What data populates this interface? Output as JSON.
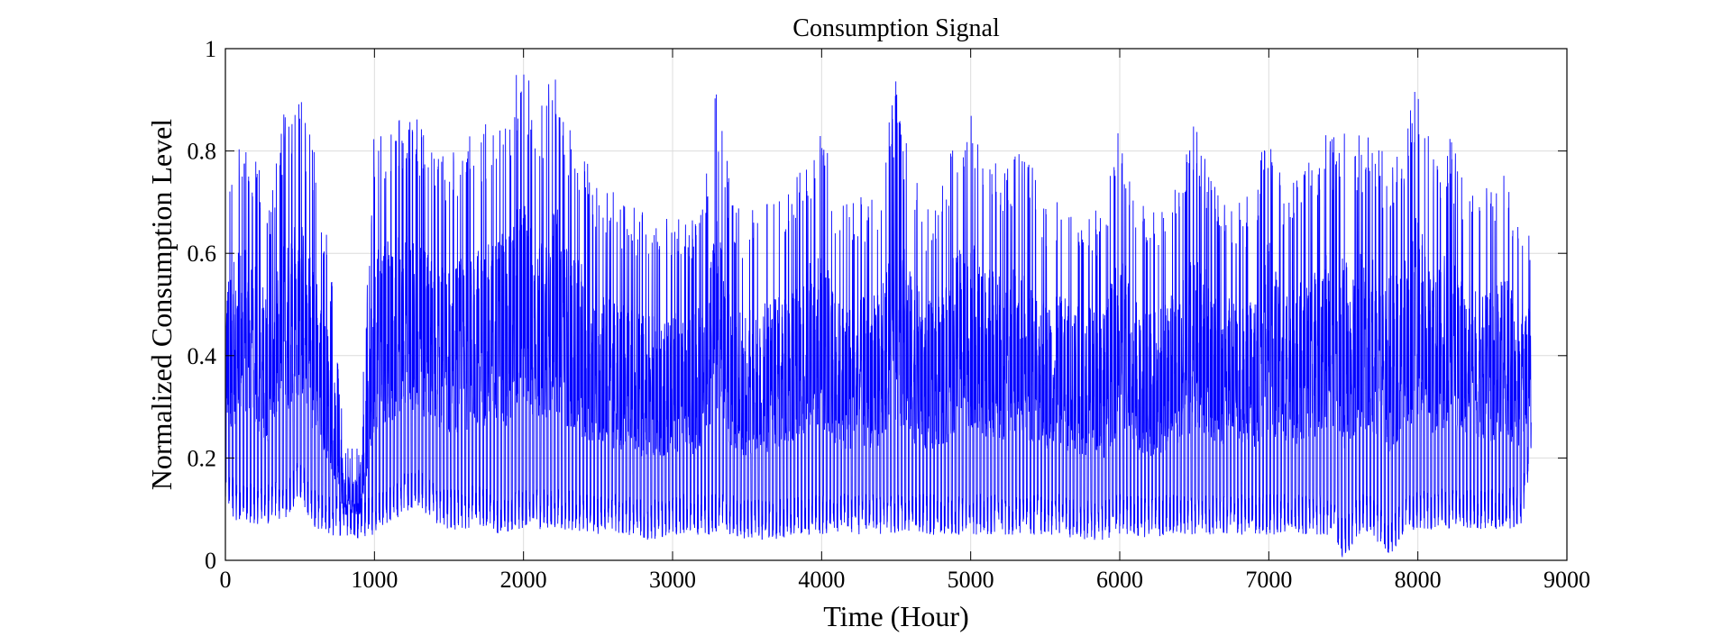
{
  "chart_data": {
    "type": "line",
    "title": "Consumption Signal",
    "xlabel": "Time (Hour)",
    "ylabel": "Normalized Consumption Level",
    "xlim": [
      0,
      9000
    ],
    "ylim": [
      0,
      1
    ],
    "xticks": [
      0,
      1000,
      2000,
      3000,
      4000,
      5000,
      6000,
      7000,
      8000,
      9000
    ],
    "yticks": [
      0,
      0.2,
      0.4,
      0.6,
      0.8,
      1
    ],
    "xtick_labels": [
      "0",
      "1000",
      "2000",
      "3000",
      "4000",
      "5000",
      "6000",
      "7000",
      "8000",
      "9000"
    ],
    "ytick_labels": [
      "0",
      "0.2",
      "0.4",
      "0.6",
      "0.8",
      "1"
    ],
    "grid": true,
    "series": [
      {
        "color": "#0000ff",
        "x_range": [
          0,
          8760
        ],
        "x_step": 1,
        "envelope_x": [
          0,
          100,
          200,
          300,
          400,
          500,
          600,
          700,
          800,
          900,
          1000,
          1100,
          1200,
          1300,
          1400,
          1500,
          1600,
          1700,
          1800,
          1900,
          2000,
          2100,
          2200,
          2300,
          2400,
          2500,
          2600,
          2700,
          2800,
          2900,
          3000,
          3100,
          3200,
          3300,
          3400,
          3500,
          3600,
          3700,
          3800,
          3900,
          4000,
          4100,
          4200,
          4300,
          4400,
          4500,
          4600,
          4700,
          4800,
          4900,
          5000,
          5100,
          5200,
          5300,
          5400,
          5500,
          5600,
          5700,
          5800,
          5900,
          6000,
          6100,
          6200,
          6300,
          6400,
          6500,
          6600,
          6700,
          6800,
          6900,
          7000,
          7100,
          7200,
          7300,
          7400,
          7500,
          7600,
          7700,
          7800,
          7900,
          8000,
          8100,
          8200,
          8300,
          8400,
          8500,
          8600,
          8700,
          8760
        ],
        "envelope_max": [
          0.72,
          0.86,
          0.8,
          0.7,
          0.89,
          0.92,
          0.8,
          0.6,
          0.23,
          0.22,
          0.85,
          0.87,
          0.88,
          0.86,
          0.8,
          0.8,
          0.82,
          0.85,
          0.88,
          0.9,
          1.0,
          0.86,
          1.0,
          0.85,
          0.8,
          0.75,
          0.72,
          0.7,
          0.68,
          0.66,
          0.68,
          0.66,
          0.7,
          0.95,
          0.7,
          0.68,
          0.7,
          0.72,
          0.75,
          0.8,
          0.85,
          0.72,
          0.7,
          0.72,
          0.75,
          0.95,
          0.78,
          0.7,
          0.72,
          0.85,
          0.88,
          0.8,
          0.78,
          0.8,
          0.78,
          0.7,
          0.72,
          0.7,
          0.7,
          0.68,
          0.88,
          0.72,
          0.68,
          0.7,
          0.75,
          0.86,
          0.78,
          0.72,
          0.7,
          0.72,
          0.88,
          0.72,
          0.75,
          0.8,
          0.84,
          0.86,
          0.84,
          0.82,
          0.8,
          0.82,
          0.96,
          0.8,
          0.84,
          0.76,
          0.74,
          0.74,
          0.76,
          0.66,
          0.65
        ],
        "envelope_min": [
          0.1,
          0.07,
          0.07,
          0.07,
          0.08,
          0.12,
          0.06,
          0.05,
          0.04,
          0.04,
          0.05,
          0.07,
          0.09,
          0.1,
          0.07,
          0.06,
          0.06,
          0.07,
          0.05,
          0.05,
          0.06,
          0.06,
          0.06,
          0.06,
          0.05,
          0.05,
          0.05,
          0.05,
          0.04,
          0.04,
          0.05,
          0.05,
          0.05,
          0.05,
          0.05,
          0.04,
          0.04,
          0.04,
          0.05,
          0.05,
          0.05,
          0.05,
          0.05,
          0.05,
          0.05,
          0.05,
          0.05,
          0.05,
          0.05,
          0.05,
          0.05,
          0.05,
          0.05,
          0.05,
          0.05,
          0.05,
          0.05,
          0.04,
          0.04,
          0.04,
          0.05,
          0.05,
          0.04,
          0.05,
          0.05,
          0.05,
          0.05,
          0.05,
          0.05,
          0.05,
          0.05,
          0.05,
          0.05,
          0.05,
          0.05,
          0.0,
          0.05,
          0.05,
          0.0,
          0.05,
          0.06,
          0.06,
          0.06,
          0.06,
          0.06,
          0.06,
          0.06,
          0.07,
          0.2
        ]
      }
    ]
  }
}
